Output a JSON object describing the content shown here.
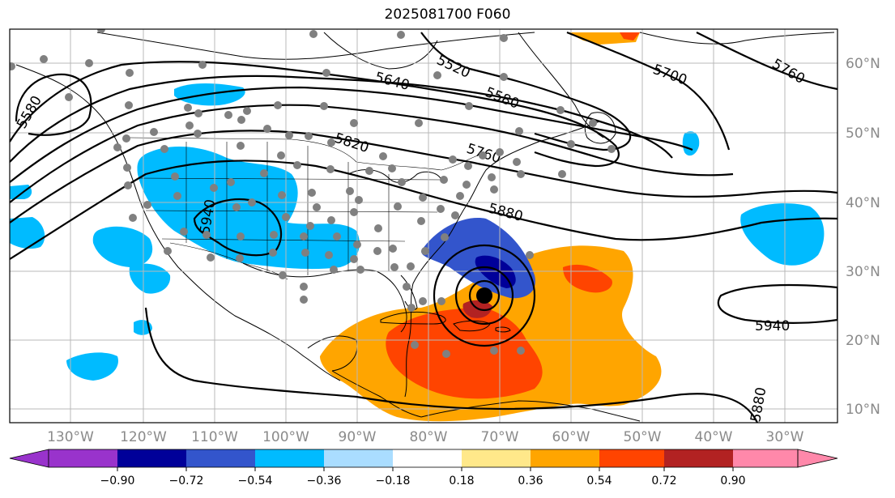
{
  "title": "2025081700 F060",
  "map": {
    "projection": "equirectangular",
    "lon_range": [
      -140,
      -25
    ],
    "lat_range": [
      8,
      65
    ],
    "gridlines": true,
    "lon_labels": [
      "130°W",
      "120°W",
      "110°W",
      "100°W",
      "90°W",
      "80°W",
      "70°W",
      "60°W",
      "50°W",
      "40°W",
      "30°W"
    ],
    "lat_labels": [
      "60°N",
      "50°N",
      "40°N",
      "30°N",
      "20°N",
      "10°N"
    ],
    "contour_labels": [
      "5520",
      "5580",
      "5580",
      "5640",
      "5700",
      "5760",
      "5760",
      "5820",
      "5880",
      "5940",
      "5940",
      "5880"
    ],
    "shading_colors": [
      "#9933cc",
      "#000099",
      "#3355cc",
      "#00bbff",
      "#aaddff",
      "#ffffff",
      "#ffe88a",
      "#ffa500",
      "#ff4400",
      "#b22222",
      "#ff88aa"
    ],
    "station_color": "#808080",
    "storm_marker": "closed-low"
  },
  "colorbar": {
    "ticks": [
      "−0.90",
      "−0.72",
      "−0.54",
      "−0.36",
      "−0.18",
      "0.18",
      "0.36",
      "0.54",
      "0.72",
      "0.90"
    ],
    "extend": "both"
  }
}
